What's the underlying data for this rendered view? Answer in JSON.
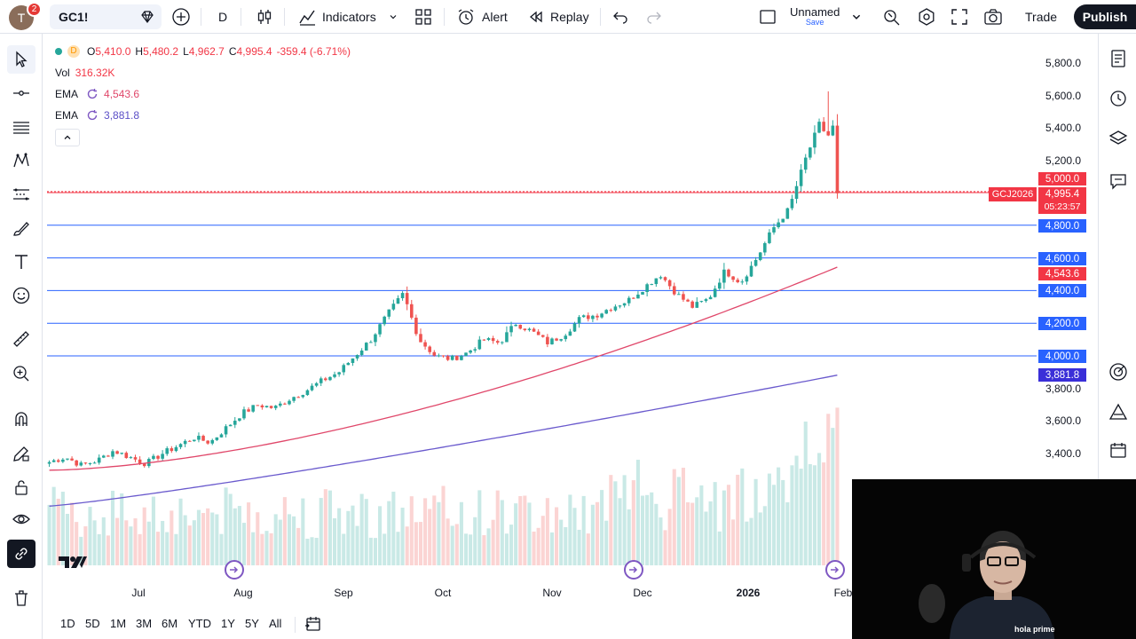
{
  "topbar": {
    "avatar_letter": "T",
    "notif_count": "2",
    "symbol": "GC1!",
    "interval": "D",
    "indicators_label": "Indicators",
    "alert_label": "Alert",
    "replay_label": "Replay",
    "layout_name": "Unnamed",
    "save_label": "Save",
    "trade_label": "Trade",
    "publish_label": "Publish"
  },
  "legend": {
    "interval": "D",
    "open_label": "O",
    "open": "5,410.0",
    "high_label": "H",
    "high": "5,480.2",
    "low_label": "L",
    "low": "4,962.7",
    "close_label": "C",
    "close": "4,995.4",
    "change": "-359.4 (-6.71%)",
    "vol_label": "Vol",
    "vol": "316.32K",
    "ema1_label": "EMA",
    "ema1": "4,543.6",
    "ema2_label": "EMA",
    "ema2": "3,881.8"
  },
  "price_axis": {
    "ticks": [
      "5,800.0",
      "5,600.0",
      "5,400.0",
      "5,200.0",
      "3,800.0",
      "3,600.0",
      "3,400.0"
    ],
    "boxes": {
      "p5000": "5,000.0",
      "current": "4,995.4",
      "countdown": "05:23:57",
      "p4800": "4,800.0",
      "p4600": "4,600.0",
      "ema1": "4,543.6",
      "p4400": "4,400.0",
      "p4200": "4,200.0",
      "p4000": "4,000.0",
      "ema2": "3,881.8"
    },
    "contract_label": "GCJ2026"
  },
  "time_axis": [
    "Jul",
    "Aug",
    "Sep",
    "Oct",
    "Nov",
    "Dec",
    "2026",
    "Feb"
  ],
  "ranges": [
    "1D",
    "5D",
    "1M",
    "3M",
    "6M",
    "YTD",
    "1Y",
    "5Y",
    "All"
  ],
  "webcam": {
    "shirt_text": "hola prime"
  },
  "chart_data": {
    "type": "candlestick",
    "symbol": "GC1!",
    "interval": "D",
    "ylim": [
      3200,
      5900
    ],
    "up_color": "#26a69a",
    "down_color": "#ef5350",
    "horizontal_lines": [
      5000,
      4800,
      4600,
      4400,
      4200,
      4000
    ],
    "last_price": 4995.4,
    "series": [
      {
        "name": "EMA",
        "color": "#e0476a",
        "last": 4543.6
      },
      {
        "name": "EMA",
        "color": "#6a5acd",
        "last": 3881.8
      }
    ],
    "months": [
      "Jul",
      "Aug",
      "Sep",
      "Oct",
      "Nov",
      "Dec",
      "2026",
      "Feb"
    ],
    "approx_closes": [
      3350,
      3380,
      3330,
      3360,
      3420,
      3380,
      3340,
      3400,
      3450,
      3500,
      3470,
      3560,
      3650,
      3700,
      3680,
      3740,
      3790,
      3850,
      3900,
      4000,
      4100,
      4250,
      4380,
      4100,
      4000,
      3980,
      4020,
      4100,
      4080,
      4200,
      4150,
      4080,
      4130,
      4230,
      4250,
      4300,
      4340,
      4420,
      4500,
      4380,
      4300,
      4350,
      4520,
      4450,
      4600,
      4780,
      4900,
      5200,
      5450,
      4995
    ]
  }
}
